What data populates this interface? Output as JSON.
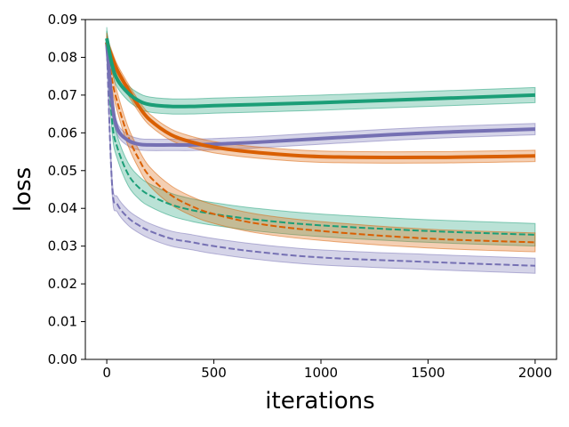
{
  "chart_data": {
    "type": "line",
    "title": "",
    "xlabel": "iterations",
    "ylabel": "loss",
    "xlim": [
      -100,
      2100
    ],
    "ylim": [
      0,
      0.09
    ],
    "xticks": [
      0,
      500,
      1000,
      1500,
      2000
    ],
    "yticks": [
      0.0,
      0.01,
      0.02,
      0.03,
      0.04,
      0.05,
      0.06,
      0.07,
      0.08,
      0.09
    ],
    "xtick_labels": [
      "0",
      "500",
      "1000",
      "1500",
      "2000"
    ],
    "ytick_labels": [
      "0.00",
      "0.01",
      "0.02",
      "0.03",
      "0.04",
      "0.05",
      "0.06",
      "0.07",
      "0.08",
      "0.09"
    ],
    "grid": false,
    "legend": "none",
    "x": [
      0,
      25,
      50,
      100,
      150,
      200,
      300,
      400,
      500,
      700,
      1000,
      1500,
      2000
    ],
    "series": [
      {
        "name": "green solid",
        "color": "#1b9e77",
        "style": "solid",
        "values": [
          0.085,
          0.078,
          0.074,
          0.0705,
          0.0685,
          0.0675,
          0.067,
          0.067,
          0.0672,
          0.0675,
          0.068,
          0.069,
          0.07
        ],
        "band": 0.002
      },
      {
        "name": "purple solid",
        "color": "#7570b3",
        "style": "solid",
        "values": [
          0.084,
          0.068,
          0.061,
          0.058,
          0.057,
          0.0568,
          0.0568,
          0.0568,
          0.057,
          0.0575,
          0.0585,
          0.06,
          0.061
        ],
        "band": 0.0015
      },
      {
        "name": "orange solid",
        "color": "#d95f02",
        "style": "solid",
        "values": [
          0.084,
          0.08,
          0.0765,
          0.0715,
          0.067,
          0.0635,
          0.0595,
          0.0575,
          0.0562,
          0.0548,
          0.0537,
          0.0535,
          0.0539
        ],
        "band": 0.0015
      },
      {
        "name": "green dashed",
        "color": "#1b9e77",
        "style": "dashed",
        "values": [
          0.085,
          0.063,
          0.056,
          0.049,
          0.0455,
          0.0435,
          0.041,
          0.0395,
          0.0385,
          0.037,
          0.0355,
          0.034,
          0.033
        ],
        "band": 0.003
      },
      {
        "name": "orange dashed",
        "color": "#d95f02",
        "style": "dashed",
        "values": [
          0.084,
          0.074,
          0.068,
          0.059,
          0.053,
          0.0485,
          0.0435,
          0.0405,
          0.0385,
          0.036,
          0.034,
          0.032,
          0.031
        ],
        "band": 0.0025
      },
      {
        "name": "purple dashed",
        "color": "#7570b3",
        "style": "dashed",
        "values": [
          0.083,
          0.046,
          0.041,
          0.0375,
          0.0355,
          0.034,
          0.032,
          0.031,
          0.03,
          0.0285,
          0.027,
          0.0258,
          0.0248
        ],
        "band": 0.002
      }
    ]
  }
}
